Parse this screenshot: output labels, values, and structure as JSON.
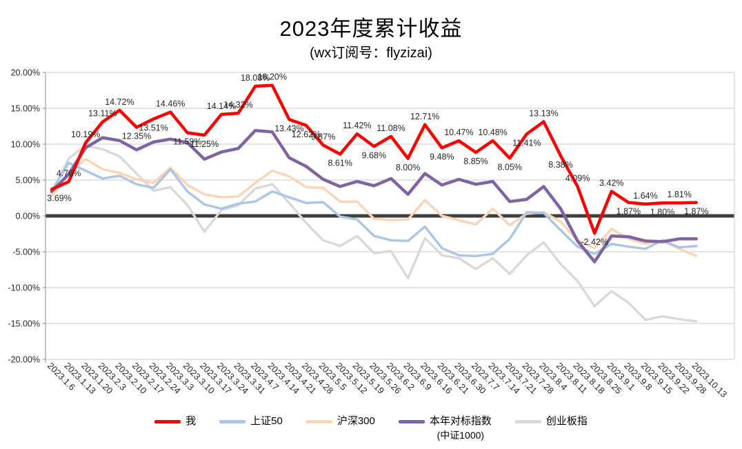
{
  "title": "2023年度累计收益",
  "subtitle": "(wx订阅号：flyzizai)",
  "chart_data": {
    "type": "line",
    "title": "2023年度累计收益",
    "subtitle": "(wx订阅号：flyzizai)",
    "grid": true,
    "legend_position": "bottom",
    "ylim": [
      -20,
      20
    ],
    "y_ticks": [
      {
        "value": 20,
        "label": "20.00%"
      },
      {
        "value": 15,
        "label": "15.00%"
      },
      {
        "value": 10,
        "label": "10.00%"
      },
      {
        "value": 5,
        "label": "5.00%"
      },
      {
        "value": 0,
        "label": "0.00%"
      },
      {
        "value": -5,
        "label": "-5.00%"
      },
      {
        "value": -10,
        "label": "-10.00%"
      },
      {
        "value": -15,
        "label": "-15.00%"
      },
      {
        "value": -20,
        "label": "-20.00%"
      }
    ],
    "categories": [
      "2023.1.6",
      "2023.1.13",
      "2023.1.20",
      "2023.2.3",
      "2023.2.10",
      "2023.2.17",
      "2023.2.24",
      "2023.3.3",
      "2023.3.10",
      "2023.3.17",
      "2023.3.24",
      "2023.3.31",
      "2023.4.7",
      "2023.4.14",
      "2023.4.21",
      "2023.4.28",
      "2023.5.5",
      "2023.5.12",
      "2023.5.19",
      "2023.5.26",
      "2023.6.2",
      "2023.6.9",
      "2023.6.16",
      "2023.6.21",
      "2023.6.30",
      "2023.7.7",
      "2023.7.14",
      "2023.7.21",
      "2023.7.28",
      "2023.8.4",
      "2023.8.11",
      "2023.8.18",
      "2023.8.25",
      "2023.9.1",
      "2023.9.8",
      "2023.9.15",
      "2023.9.22",
      "2023.9.28",
      "2023.10.13"
    ],
    "series": [
      {
        "key": "me",
        "name": "我",
        "color": "#FF0000",
        "width": 4.5,
        "values": [
          3.69,
          4.76,
          10.19,
          13.11,
          14.72,
          12.35,
          13.51,
          14.46,
          11.59,
          11.25,
          14.14,
          14.32,
          18.08,
          18.2,
          13.43,
          12.62,
          9.87,
          8.61,
          11.42,
          9.68,
          11.08,
          8.0,
          12.71,
          9.48,
          10.47,
          8.85,
          10.48,
          8.05,
          11.41,
          13.13,
          8.38,
          4.09,
          -2.42,
          3.42,
          1.87,
          1.64,
          1.8,
          1.81,
          1.87
        ],
        "labels": [
          "3.69%",
          "4.76%",
          "10.19%",
          "13.11%",
          "14.72%",
          "12.35%",
          "13.51%",
          "14.46%",
          "11.59%",
          "11.25%",
          "14.14%",
          "14.32%",
          "18.08%",
          "18.20%",
          "13.43%",
          "12.62%",
          "9.87%",
          "8.61%",
          "11.42%",
          "9.68%",
          "11.08%",
          "8.00%",
          "12.71%",
          "9.48%",
          "10.47%",
          "8.85%",
          "10.48%",
          "8.05%",
          "11.41%",
          "13.13%",
          "8.38%",
          "4.09%",
          "-2.42%",
          "3.42%",
          "1.87%",
          "1.64%",
          "1.80%",
          "1.81%",
          "1.87%"
        ],
        "label_sides": [
          "below",
          "above",
          "above",
          "above",
          "above",
          "below",
          "below",
          "above",
          "below",
          "below",
          "above",
          "above",
          "above",
          "above",
          "below",
          "below",
          "above",
          "below",
          "above",
          "below",
          "above",
          "below",
          "above",
          "below",
          "above",
          "below",
          "above",
          "below",
          "below",
          "above",
          "below",
          "above",
          "below",
          "above",
          "below",
          "above",
          "below",
          "above",
          "below"
        ]
      },
      {
        "key": "sse50",
        "name": "上证50",
        "color": "#ADC6E5",
        "width": 3.5,
        "values": [
          3.5,
          7.4,
          6.3,
          5.2,
          5.6,
          4.4,
          3.9,
          6.5,
          3.4,
          1.6,
          1.0,
          1.7,
          2.0,
          3.4,
          2.6,
          1.8,
          1.9,
          -0.1,
          -0.5,
          -2.8,
          -3.4,
          -3.5,
          -1.5,
          -4.5,
          -5.5,
          -5.6,
          -5.3,
          -3.2,
          0.5,
          0.4,
          -2.0,
          -4.3,
          -5.3,
          -3.9,
          -4.3,
          -4.6,
          -3.4,
          -4.4,
          -4.2
        ]
      },
      {
        "key": "csi300",
        "name": "沪深300",
        "color": "#FBD5B5",
        "width": 3.5,
        "values": [
          2.8,
          6.0,
          7.9,
          6.5,
          6.0,
          5.1,
          4.6,
          6.7,
          4.3,
          3.0,
          2.6,
          2.7,
          4.6,
          6.3,
          5.5,
          4.0,
          3.9,
          2.0,
          2.0,
          -0.4,
          -0.6,
          -0.5,
          2.2,
          0.0,
          -0.6,
          -1.2,
          1.0,
          -1.3,
          0.3,
          0.5,
          -0.8,
          -3.5,
          -4.5,
          -1.8,
          -3.2,
          -3.9,
          -3.5,
          -4.6,
          -5.6
        ]
      },
      {
        "key": "benchmark-csi1000",
        "name": "本年对标指数",
        "sublabel": "(中证1000)",
        "color": "#8064A2",
        "width": 4.5,
        "values": [
          3.4,
          5.8,
          9.5,
          10.9,
          10.5,
          9.2,
          10.3,
          10.7,
          10.2,
          7.9,
          8.9,
          9.4,
          11.9,
          11.7,
          8.1,
          6.9,
          5.1,
          4.1,
          4.8,
          4.2,
          5.2,
          3.0,
          5.9,
          4.3,
          5.1,
          4.4,
          4.8,
          2.0,
          2.3,
          4.1,
          1.0,
          -3.5,
          -6.4,
          -2.8,
          -2.9,
          -3.5,
          -3.6,
          -3.2,
          -3.2
        ]
      },
      {
        "key": "chinext",
        "name": "创业板指",
        "color": "#D9D9D9",
        "width": 3.5,
        "values": [
          3.3,
          8.0,
          9.8,
          9.3,
          8.3,
          5.9,
          3.5,
          4.0,
          1.5,
          -2.2,
          0.8,
          1.5,
          3.8,
          4.4,
          1.8,
          -1.0,
          -3.4,
          -4.2,
          -2.8,
          -5.2,
          -4.9,
          -8.7,
          -3.1,
          -5.5,
          -5.9,
          -7.4,
          -5.9,
          -8.1,
          -5.5,
          -3.7,
          -6.7,
          -9.1,
          -12.6,
          -10.5,
          -12.1,
          -14.5,
          -14.0,
          -14.4,
          -14.7
        ]
      }
    ],
    "colors": {
      "grid": "#C9C9C9",
      "zero_line": "#3F3F3F",
      "axis": "#8C8C8C",
      "text": "#262626"
    }
  }
}
